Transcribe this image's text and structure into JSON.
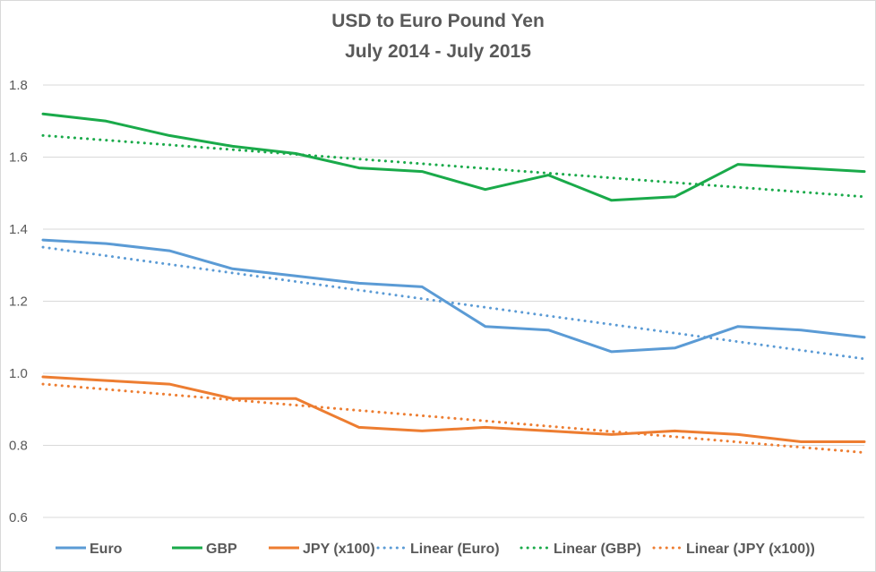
{
  "chart_data": {
    "type": "line",
    "title": "USD to Euro Pound Yen",
    "subtitle": "July 2014 - July 2015",
    "xlabel": "",
    "ylabel": "",
    "ylim": [
      0.6,
      1.8
    ],
    "yticks": [
      "0.6",
      "0.8",
      "1.0",
      "1.2",
      "1.4",
      "1.6",
      "1.8"
    ],
    "grid": true,
    "legend_position": "bottom",
    "x": [
      0,
      20,
      40,
      60,
      80,
      100,
      120,
      140,
      160,
      180,
      200,
      220,
      240,
      260
    ],
    "series": [
      {
        "name": "Euro",
        "color": "#5b9bd5",
        "style": "solid",
        "values": [
          1.37,
          1.36,
          1.34,
          1.29,
          1.27,
          1.25,
          1.24,
          1.13,
          1.12,
          1.06,
          1.07,
          1.13,
          1.12,
          1.1
        ]
      },
      {
        "name": "GBP",
        "color": "#1aaa4a",
        "style": "solid",
        "values": [
          1.72,
          1.7,
          1.66,
          1.63,
          1.61,
          1.57,
          1.56,
          1.51,
          1.55,
          1.48,
          1.49,
          1.58,
          1.57,
          1.56
        ]
      },
      {
        "name": "JPY (x100)",
        "color": "#ed7d31",
        "style": "solid",
        "values": [
          0.99,
          0.98,
          0.97,
          0.93,
          0.93,
          0.85,
          0.84,
          0.85,
          0.84,
          0.83,
          0.84,
          0.83,
          0.81,
          0.81
        ]
      },
      {
        "name": "Linear (Euro)",
        "color": "#5b9bd5",
        "style": "dotted",
        "trend": [
          1.35,
          1.04
        ]
      },
      {
        "name": "Linear (GBP)",
        "color": "#1aaa4a",
        "style": "dotted",
        "trend": [
          1.66,
          1.49
        ]
      },
      {
        "name": "Linear (JPY (x100))",
        "color": "#ed7d31",
        "style": "dotted",
        "trend": [
          0.97,
          0.78
        ]
      }
    ]
  }
}
